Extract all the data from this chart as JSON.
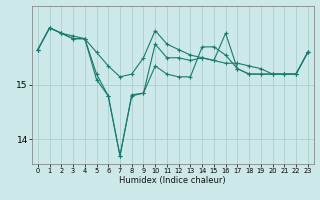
{
  "xlabel": "Humidex (Indice chaleur)",
  "ylabel": "",
  "background_color": "#cce8e8",
  "grid_color": "#aacfcf",
  "line_color": "#1a7a6e",
  "x_ticks": [
    0,
    1,
    2,
    3,
    4,
    5,
    6,
    7,
    8,
    9,
    10,
    11,
    12,
    13,
    14,
    15,
    16,
    17,
    18,
    19,
    20,
    21,
    22,
    23
  ],
  "y_ticks": [
    14,
    15
  ],
  "ylim": [
    13.55,
    16.45
  ],
  "xlim": [
    -0.5,
    23.5
  ],
  "series": [
    [
      15.65,
      16.05,
      15.95,
      15.9,
      15.85,
      15.6,
      15.35,
      15.15,
      15.2,
      15.5,
      16.0,
      15.75,
      15.65,
      15.55,
      15.5,
      15.45,
      15.4,
      15.4,
      15.35,
      15.3,
      15.2,
      15.2,
      15.2,
      15.6
    ],
    [
      15.65,
      16.05,
      15.95,
      15.85,
      15.85,
      15.2,
      14.8,
      13.7,
      14.8,
      14.85,
      15.35,
      15.2,
      15.15,
      15.15,
      15.7,
      15.7,
      15.55,
      15.3,
      15.2,
      15.2,
      15.2,
      15.2,
      15.2,
      15.6
    ],
    [
      15.65,
      16.05,
      15.95,
      15.85,
      15.85,
      15.1,
      14.8,
      13.7,
      14.82,
      14.85,
      15.75,
      15.5,
      15.5,
      15.45,
      15.5,
      15.45,
      15.95,
      15.3,
      15.2,
      15.2,
      15.2,
      15.2,
      15.2,
      15.6
    ]
  ],
  "xlabel_fontsize": 6.0,
  "ytick_fontsize": 6.5,
  "xtick_fontsize": 4.8
}
